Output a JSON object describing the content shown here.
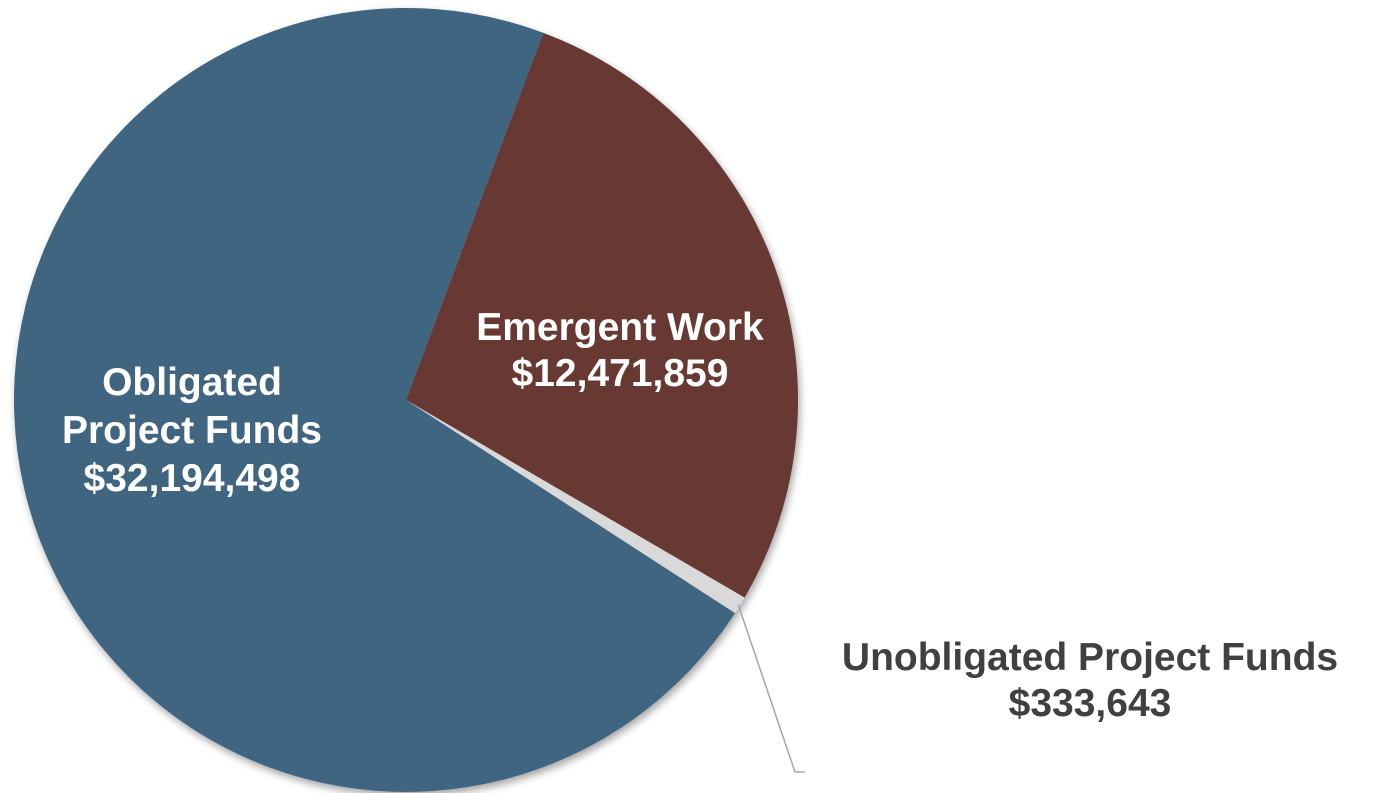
{
  "chart_data": {
    "type": "pie",
    "slices": [
      {
        "name": "Emergent Work",
        "value": 12471859,
        "label_lines": [
          "Emergent Work",
          "$12,471,859"
        ],
        "color": "#673932"
      },
      {
        "name": "Unobligated Project Funds",
        "value": 333643,
        "label_lines": [
          "Unobligated Project Funds",
          "$333,643"
        ],
        "color": "#d9d9d9"
      },
      {
        "name": "Obligated Project Funds",
        "value": 32194498,
        "label_lines": [
          "Obligated",
          "Project Funds",
          "$32,194,498"
        ],
        "color": "#3f6580"
      }
    ],
    "legend": "none",
    "label_color_inside": "#ffffff",
    "label_color_outside": "#404040"
  }
}
